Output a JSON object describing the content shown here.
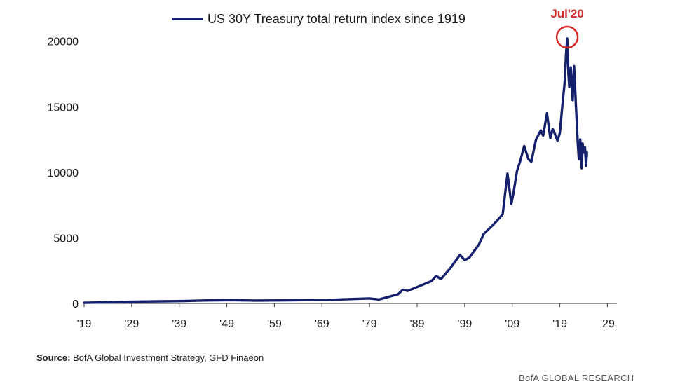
{
  "chart_data": {
    "type": "line",
    "title": "",
    "xlabel": "",
    "ylabel": "",
    "xlim": [
      1919,
      2031
    ],
    "ylim": [
      0,
      21000
    ],
    "yticks": [
      0,
      5000,
      10000,
      15000,
      20000
    ],
    "ytick_labels": [
      "0",
      "5000",
      "10000",
      "15000",
      "20000"
    ],
    "xticks": [
      1919,
      1929,
      1939,
      1949,
      1959,
      1969,
      1979,
      1989,
      1999,
      2009,
      2019,
      2029
    ],
    "xtick_labels": [
      "'19",
      "'29",
      "'39",
      "'49",
      "'59",
      "'69",
      "'79",
      "'89",
      "'99",
      "'09",
      "'19",
      "'29"
    ],
    "grid": false,
    "legend_position": "top",
    "series": [
      {
        "name": "US 30Y Treasury total return index since 1919",
        "color": "#14206b",
        "x": [
          1919,
          1925,
          1930,
          1935,
          1940,
          1945,
          1950,
          1955,
          1960,
          1965,
          1970,
          1975,
          1979,
          1981,
          1983,
          1985,
          1986,
          1987,
          1988,
          1990,
          1992,
          1993,
          1994,
          1996,
          1998,
          1999,
          2000,
          2002,
          2003,
          2005,
          2007,
          2008,
          2008.8,
          2009.2,
          2010,
          2010.7,
          2011.5,
          2012.4,
          2013,
          2014,
          2015,
          2015.5,
          2016.3,
          2017,
          2017.5,
          2018,
          2018.5,
          2019,
          2019.5,
          2020.0,
          2020.3,
          2020.55,
          2020.8,
          2021.0,
          2021.3,
          2021.7,
          2022.0,
          2022.4,
          2022.8,
          2023.0,
          2023.3,
          2023.6,
          2023.8,
          2024.0,
          2024.3,
          2024.5,
          2024.7
        ],
        "values": [
          50,
          100,
          140,
          160,
          180,
          230,
          250,
          220,
          230,
          250,
          260,
          330,
          380,
          300,
          500,
          700,
          1050,
          950,
          1100,
          1400,
          1700,
          2100,
          1850,
          2700,
          3700,
          3300,
          3500,
          4500,
          5300,
          6000,
          6800,
          9900,
          7600,
          8300,
          10100,
          10900,
          12000,
          11000,
          10800,
          12500,
          13200,
          12800,
          14500,
          12600,
          13300,
          12900,
          12400,
          13000,
          15000,
          16800,
          19000,
          20200,
          17500,
          16500,
          18000,
          15500,
          18100,
          15000,
          12000,
          11000,
          12500,
          10300,
          12200,
          11500,
          11900,
          10500,
          11500
        ]
      }
    ],
    "annotations": [
      {
        "label": "Jul'20",
        "x": 2020.55,
        "y": 20200,
        "color": "#d42a2a"
      }
    ]
  },
  "footer": {
    "source_label": "Source:",
    "source_text": "BofA Global Investment Strategy, GFD Finaeon",
    "brand": "BofA GLOBAL RESEARCH"
  }
}
